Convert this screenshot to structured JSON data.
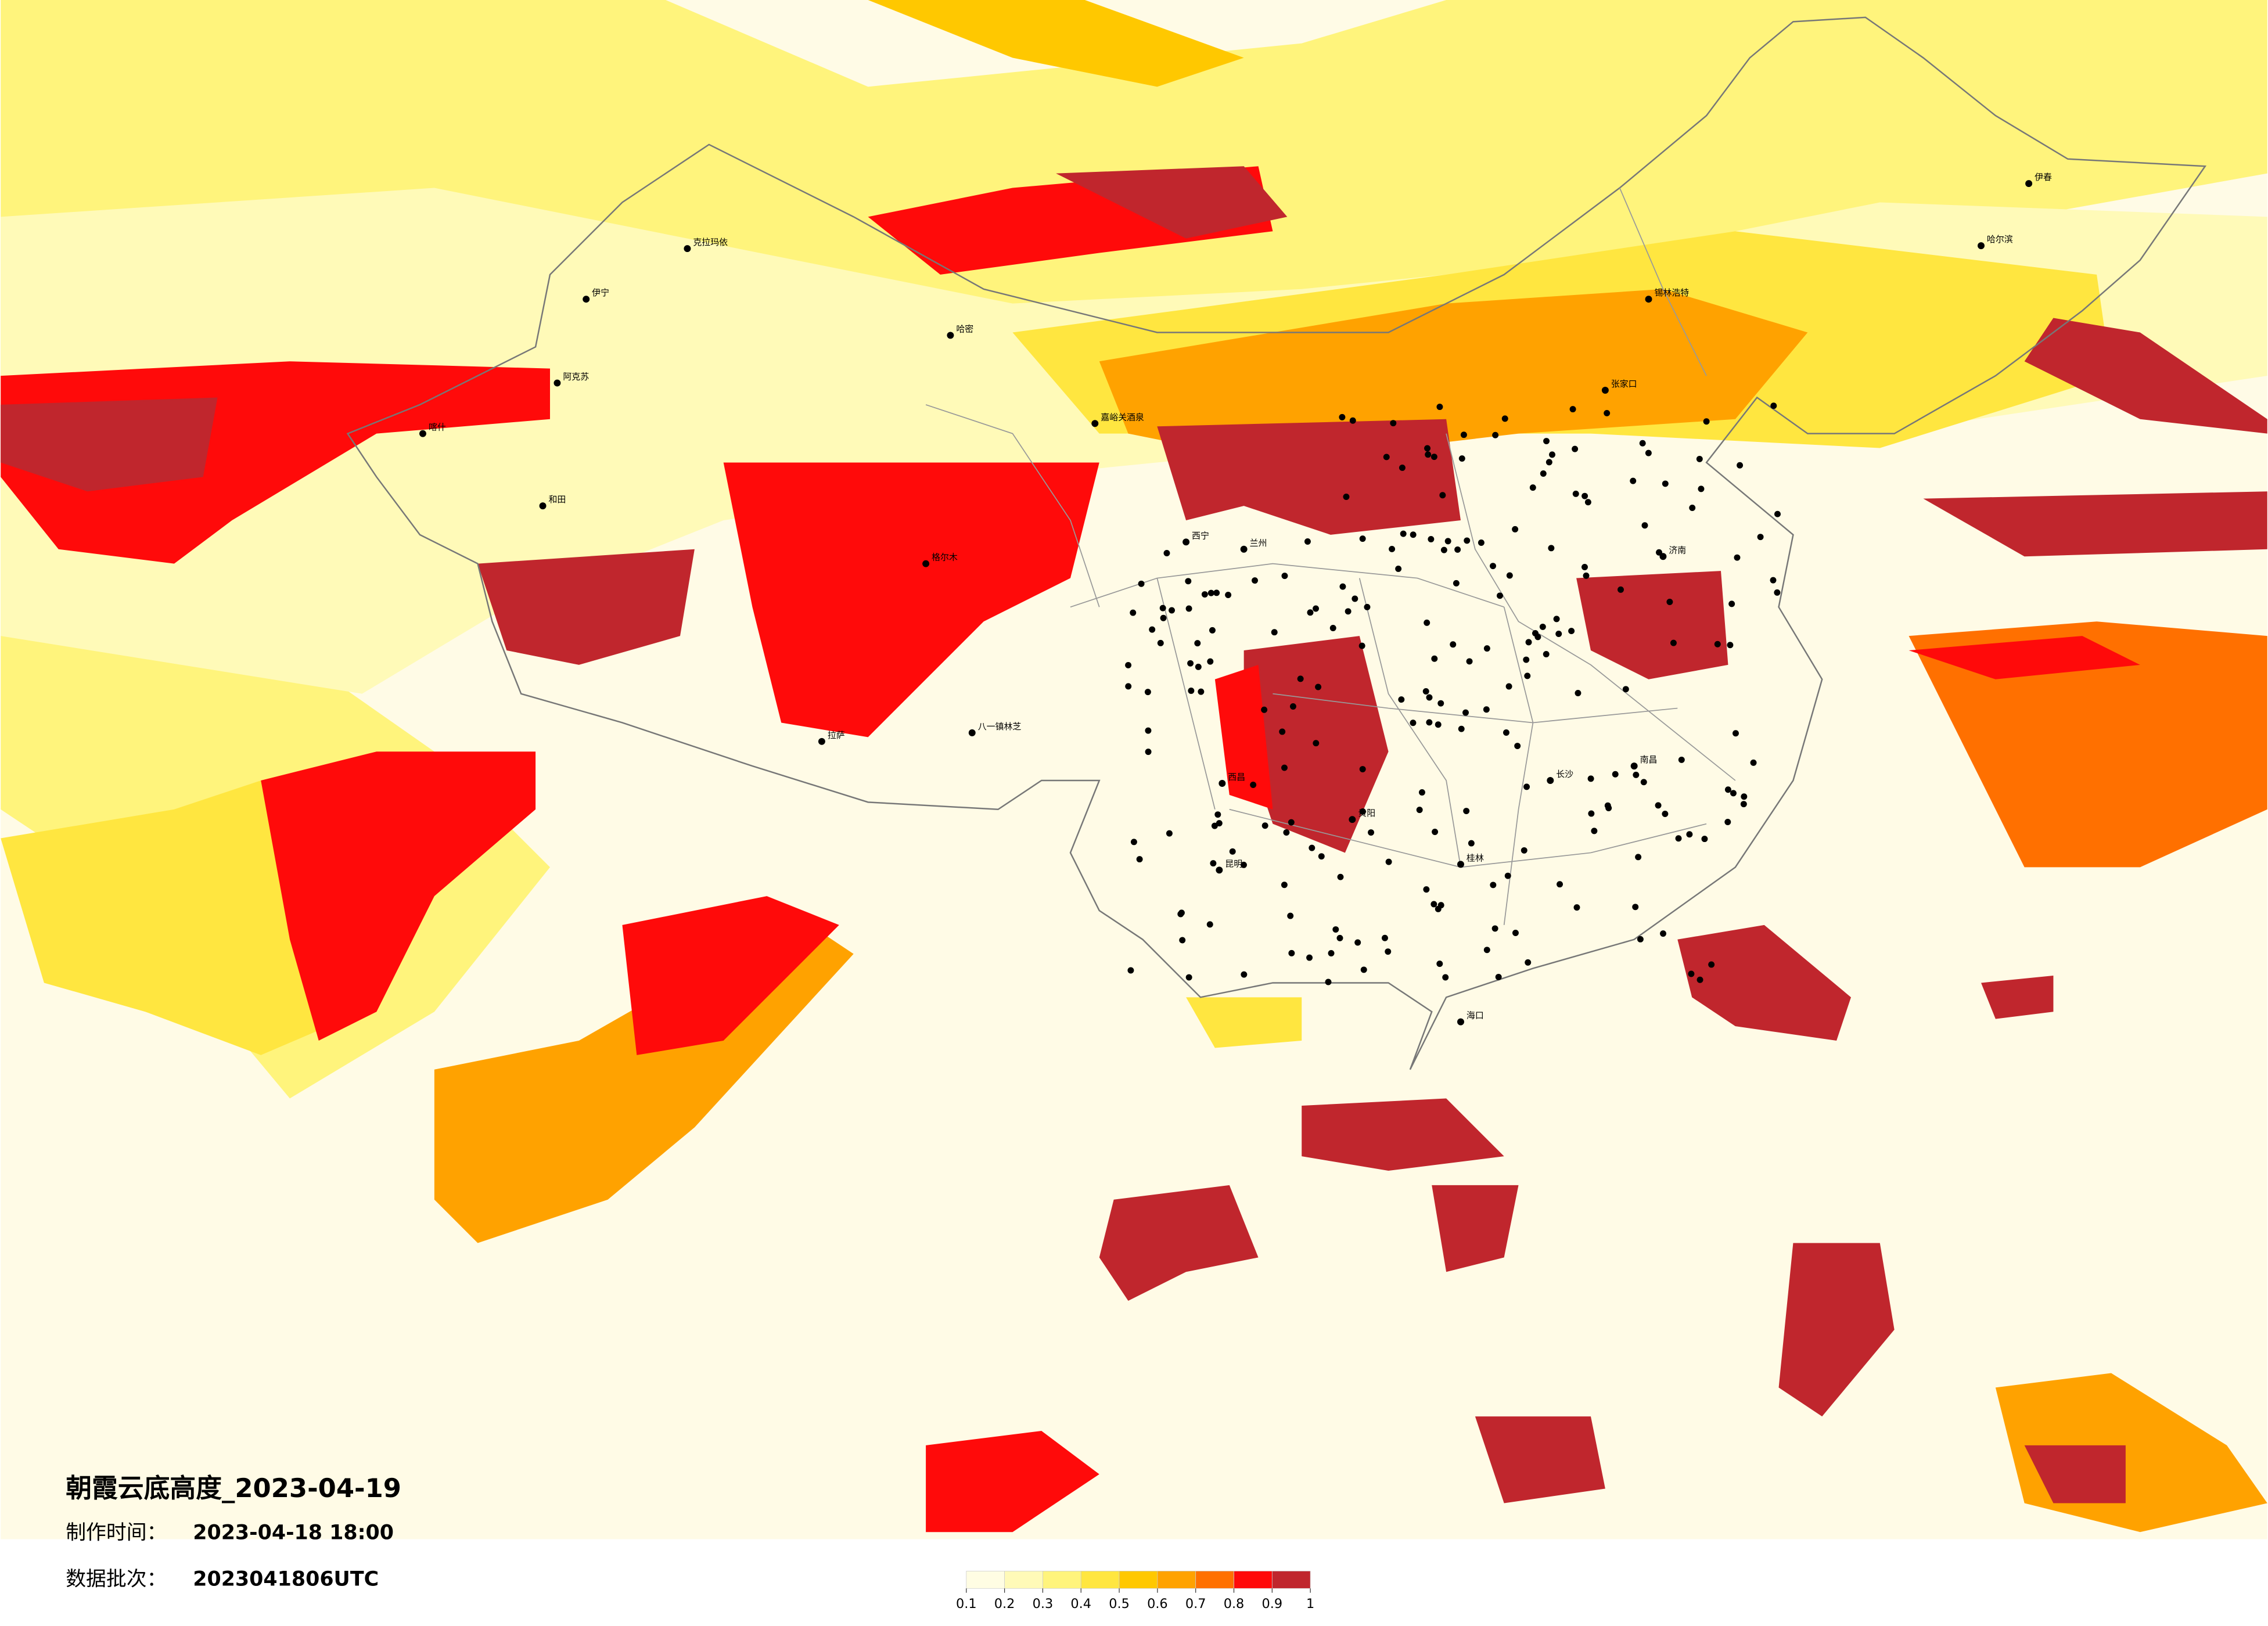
{
  "header": {
    "title": "朝霞云底高度_2023-04-19"
  },
  "info": {
    "made_label": "制作时间：",
    "made_value": "2023-04-18 18:00",
    "batch_label": "数据批次：",
    "batch_value": "2023041806UTC"
  },
  "legend": {
    "ticks": [
      0.1,
      0.2,
      0.3,
      0.4,
      0.5,
      0.6,
      0.7,
      0.8,
      0.9,
      1
    ],
    "colors": [
      "#fffde3",
      "#fffab8",
      "#fff47c",
      "#ffe640",
      "#ffc800",
      "#ffa200",
      "#ff7000",
      "#ff0a0a",
      "#c0262d"
    ]
  },
  "cities": [
    "克拉玛依",
    "伊宁",
    "阿克苏",
    "喀什",
    "和田",
    "哈密",
    "嘉峪关酒泉",
    "格尔木",
    "拉萨",
    "八一镇林芝",
    "西宁",
    "兰州",
    "西昌",
    "昆明",
    "贵阳",
    "桂林",
    "长沙",
    "南昌",
    "海口",
    "伊春",
    "哈尔滨",
    "锡林浩特",
    "张家口",
    "济南"
  ]
}
